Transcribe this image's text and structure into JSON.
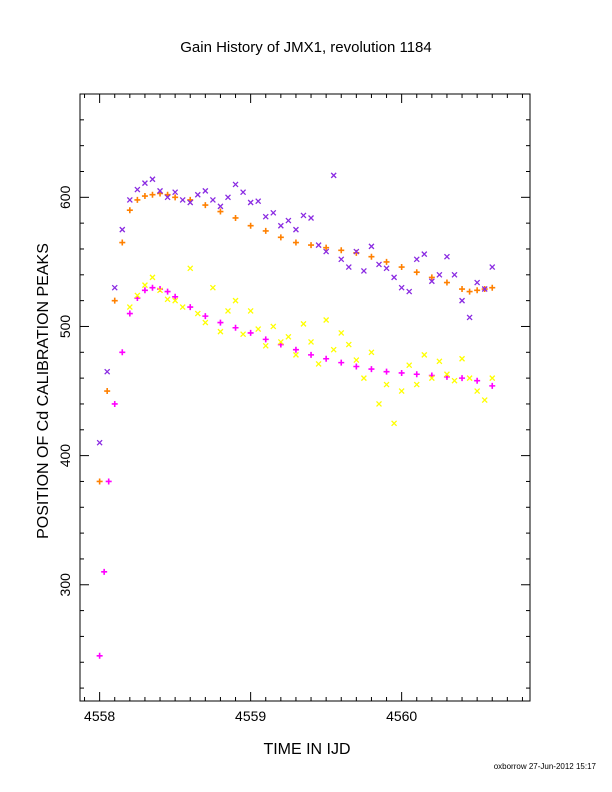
{
  "chart_data": {
    "type": "scatter",
    "title": "Gain History of JMX1, revolution 1184",
    "xlabel": "TIME IN IJD",
    "ylabel": "POSITION OF Cd CALIBRATION PEAKS",
    "xlim": [
      4557.87,
      4560.85
    ],
    "ylim": [
      210,
      680
    ],
    "xticks": [
      4558,
      4559,
      4560
    ],
    "yticks": [
      300,
      400,
      500,
      600
    ],
    "footer": "oxborrow 27-Jun-2012 15:17",
    "series": [
      {
        "color": "#ff8000",
        "marker": "plus",
        "x": [
          4558.0,
          4558.05,
          4558.1,
          4558.15,
          4558.2,
          4558.25,
          4558.3,
          4558.35,
          4558.4,
          4558.45,
          4558.5,
          4558.6,
          4558.7,
          4558.8,
          4558.9,
          4559.0,
          4559.1,
          4559.2,
          4559.3,
          4559.4,
          4559.5,
          4559.6,
          4559.7,
          4559.8,
          4559.9,
          4560.0,
          4560.1,
          4560.2,
          4560.3,
          4560.4,
          4560.45,
          4560.5,
          4560.55,
          4560.6
        ],
        "y": [
          380,
          450,
          520,
          565,
          590,
          598,
          601,
          602,
          603,
          602,
          600,
          598,
          594,
          589,
          584,
          578,
          574,
          569,
          565,
          563,
          561,
          559,
          557,
          554,
          550,
          546,
          542,
          538,
          534,
          529,
          527,
          528,
          529,
          530
        ]
      },
      {
        "color": "#ff00ff",
        "marker": "plus",
        "x": [
          4558.0,
          4558.03,
          4558.06,
          4558.1,
          4558.15,
          4558.2,
          4558.25,
          4558.3,
          4558.35,
          4558.4,
          4558.45,
          4558.5,
          4558.6,
          4558.7,
          4558.8,
          4558.9,
          4559.0,
          4559.1,
          4559.2,
          4559.3,
          4559.4,
          4559.5,
          4559.6,
          4559.7,
          4559.8,
          4559.9,
          4560.0,
          4560.1,
          4560.2,
          4560.3,
          4560.4,
          4560.5,
          4560.6
        ],
        "y": [
          245,
          310,
          380,
          440,
          480,
          510,
          522,
          528,
          530,
          529,
          527,
          523,
          515,
          508,
          503,
          499,
          495,
          490,
          486,
          482,
          478,
          475,
          472,
          469,
          467,
          465,
          464,
          463,
          462,
          461,
          460,
          458,
          454
        ]
      },
      {
        "color": "#8a2be2",
        "marker": "cross",
        "x": [
          4558.0,
          4558.05,
          4558.1,
          4558.15,
          4558.2,
          4558.25,
          4558.3,
          4558.35,
          4558.4,
          4558.45,
          4558.5,
          4558.55,
          4558.6,
          4558.65,
          4558.7,
          4558.75,
          4558.8,
          4558.85,
          4558.9,
          4558.95,
          4559.0,
          4559.05,
          4559.1,
          4559.15,
          4559.2,
          4559.25,
          4559.3,
          4559.35,
          4559.4,
          4559.45,
          4559.5,
          4559.55,
          4559.6,
          4559.65,
          4559.7,
          4559.75,
          4559.8,
          4559.85,
          4559.9,
          4559.95,
          4560.0,
          4560.05,
          4560.1,
          4560.15,
          4560.2,
          4560.25,
          4560.3,
          4560.35,
          4560.4,
          4560.45,
          4560.5,
          4560.55,
          4560.6
        ],
        "y": [
          410,
          465,
          530,
          575,
          598,
          606,
          611,
          614,
          605,
          600,
          604,
          598,
          596,
          602,
          605,
          598,
          593,
          600,
          610,
          604,
          596,
          597,
          585,
          588,
          578,
          582,
          575,
          586,
          584,
          563,
          558,
          617,
          552,
          546,
          558,
          543,
          562,
          548,
          545,
          538,
          530,
          527,
          552,
          556,
          535,
          540,
          554,
          540,
          520,
          507,
          534,
          529,
          546
        ]
      },
      {
        "color": "#ffff00",
        "marker": "cross",
        "x": [
          4558.2,
          4558.25,
          4558.3,
          4558.35,
          4558.4,
          4558.45,
          4558.5,
          4558.55,
          4558.6,
          4558.65,
          4558.7,
          4558.75,
          4558.8,
          4558.85,
          4558.9,
          4558.95,
          4559.0,
          4559.05,
          4559.1,
          4559.15,
          4559.2,
          4559.25,
          4559.3,
          4559.35,
          4559.4,
          4559.45,
          4559.5,
          4559.55,
          4559.6,
          4559.65,
          4559.7,
          4559.75,
          4559.8,
          4559.85,
          4559.9,
          4559.95,
          4560.0,
          4560.05,
          4560.1,
          4560.15,
          4560.2,
          4560.25,
          4560.3,
          4560.35,
          4560.4,
          4560.45,
          4560.5,
          4560.55,
          4560.6
        ],
        "y": [
          515,
          524,
          532,
          538,
          528,
          521,
          520,
          515,
          545,
          510,
          503,
          530,
          496,
          512,
          520,
          494,
          512,
          498,
          485,
          500,
          488,
          492,
          478,
          502,
          488,
          471,
          505,
          482,
          495,
          486,
          474,
          460,
          480,
          440,
          455,
          425,
          450,
          470,
          455,
          478,
          460,
          473,
          463,
          458,
          475,
          460,
          450,
          443,
          460
        ]
      }
    ]
  }
}
